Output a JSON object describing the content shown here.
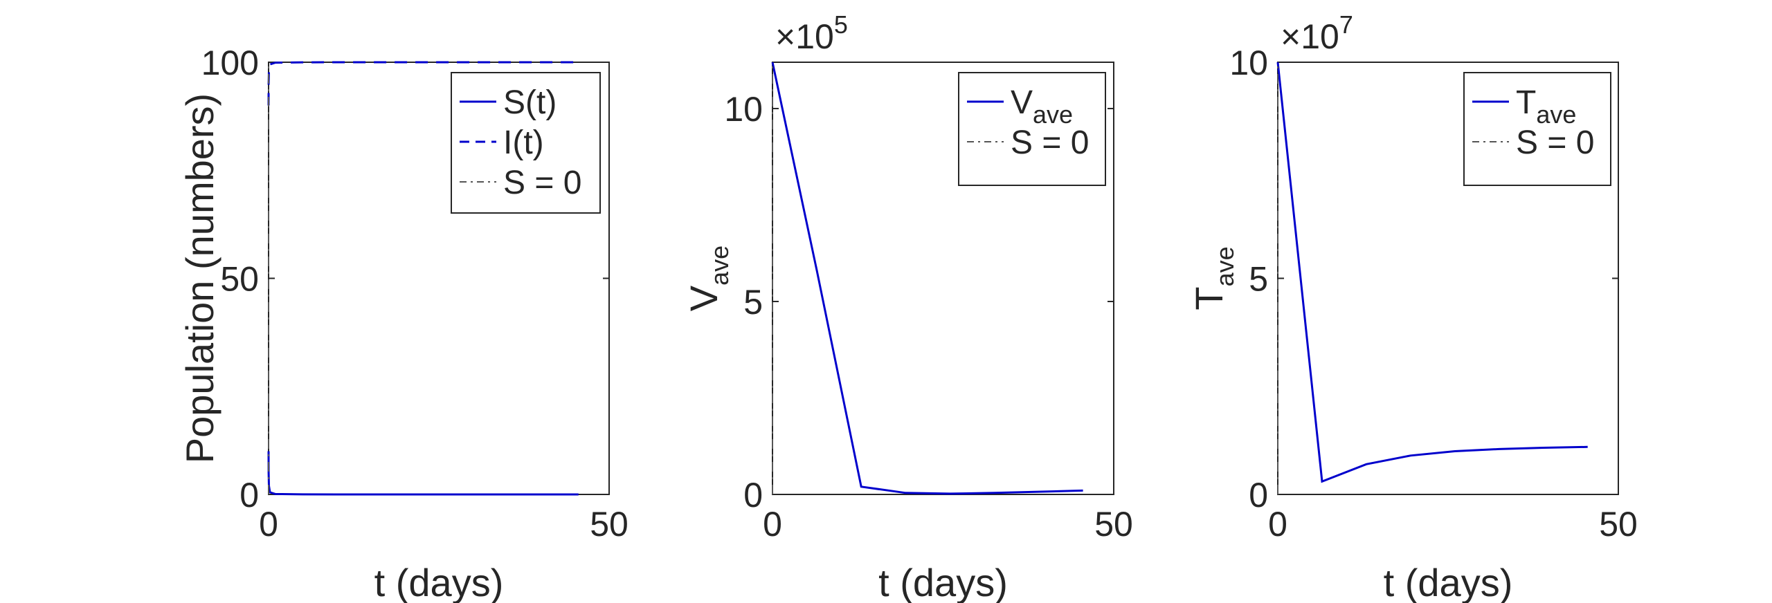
{
  "chart_data": [
    {
      "type": "line",
      "xlabel": "t (days)",
      "ylabel": "Population (numbers)",
      "xlim": [
        0,
        50
      ],
      "ylim": [
        0,
        100
      ],
      "xticks": [
        "0",
        "50"
      ],
      "yticks": [
        "0",
        "50",
        "100"
      ],
      "exponent": "",
      "legend_position": "top-right",
      "legend": [
        {
          "label": "S(t)",
          "sub": "",
          "style": "solid"
        },
        {
          "label": "I(t)",
          "sub": "",
          "style": "dashed"
        },
        {
          "label": "S = 0",
          "sub": "",
          "style": "dashdot"
        }
      ],
      "series": [
        {
          "name": "S(t)",
          "color": "#0000cc",
          "style": "solid",
          "x": [
            0,
            0.01,
            0.05,
            0.2,
            1,
            5,
            10,
            20,
            30,
            40,
            45.5
          ],
          "y": [
            10,
            5,
            2,
            0.5,
            0.1,
            0.01,
            0,
            0,
            0,
            0,
            0
          ]
        },
        {
          "name": "I(t)",
          "color": "#0000cc",
          "style": "dashed",
          "x": [
            0,
            0.01,
            0.05,
            0.2,
            1,
            5,
            10,
            20,
            30,
            40,
            45
          ],
          "y": [
            90,
            95,
            98,
            99.5,
            99.9,
            99.99,
            100,
            100,
            100,
            100,
            100
          ]
        },
        {
          "name": "S = 0",
          "color": "#555555",
          "style": "dashdot",
          "x": [
            0,
            0
          ],
          "y": [
            0,
            100
          ]
        }
      ]
    },
    {
      "type": "line",
      "xlabel": "t (days)",
      "ylabel": "V",
      "ylabel_sub": "ave",
      "xlim": [
        0,
        50
      ],
      "ylim": [
        0,
        11.2
      ],
      "xticks": [
        "0",
        "50"
      ],
      "yticks": [
        "0",
        "5",
        "10"
      ],
      "exponent": "5",
      "exponent_prefix": "×10",
      "legend_position": "top-right",
      "legend": [
        {
          "label": "V",
          "sub": "ave",
          "style": "solid"
        },
        {
          "label": "S = 0",
          "sub": "",
          "style": "dashdot"
        }
      ],
      "series": [
        {
          "name": "V_ave",
          "color": "#0000cc",
          "style": "solid",
          "x": [
            0,
            6.5,
            13,
            19.5,
            26,
            32.5,
            39,
            45.5
          ],
          "y": [
            11.2,
            5.8,
            0.2,
            0.04,
            0.02,
            0.04,
            0.07,
            0.1
          ]
        },
        {
          "name": "S = 0",
          "color": "#555555",
          "style": "dashdot",
          "x": [
            0,
            0
          ],
          "y": [
            0,
            11.2
          ]
        }
      ]
    },
    {
      "type": "line",
      "xlabel": "t (days)",
      "ylabel": "T",
      "ylabel_sub": "ave",
      "xlim": [
        0,
        50
      ],
      "ylim": [
        0,
        10
      ],
      "xticks": [
        "0",
        "50"
      ],
      "yticks": [
        "0",
        "5",
        "10"
      ],
      "exponent": "7",
      "exponent_prefix": "×10",
      "legend_position": "top-right",
      "legend": [
        {
          "label": "T",
          "sub": "ave",
          "style": "solid"
        },
        {
          "label": "S = 0",
          "sub": "",
          "style": "dashdot"
        }
      ],
      "series": [
        {
          "name": "T_ave",
          "color": "#0000cc",
          "style": "solid",
          "x": [
            0,
            6.5,
            13,
            19.5,
            26,
            32.5,
            39,
            45.5
          ],
          "y": [
            10,
            0.3,
            0.7,
            0.9,
            1.0,
            1.05,
            1.08,
            1.1
          ]
        },
        {
          "name": "S = 0",
          "color": "#555555",
          "style": "dashdot",
          "x": [
            0,
            0
          ],
          "y": [
            0,
            10
          ]
        }
      ]
    }
  ]
}
